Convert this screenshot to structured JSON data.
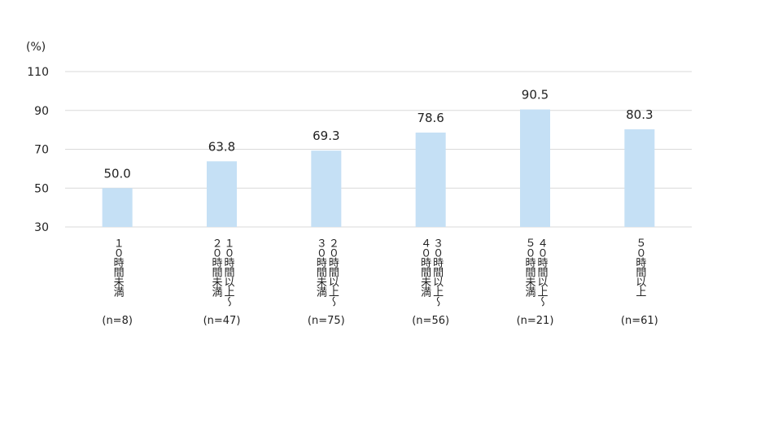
{
  "chart_data": {
    "type": "bar",
    "y_label": "(%)",
    "categories": [
      [
        "１０時間未満"
      ],
      [
        "１０時間以上〜",
        "２０時間未満"
      ],
      [
        "２０時間以上〜",
        "３０時間未満"
      ],
      [
        "３０時間以上〜",
        "４０時間未満"
      ],
      [
        "４０時間以上〜",
        "５０時間未満"
      ],
      [
        "５０時間以上"
      ]
    ],
    "sample_sizes": [
      "(n=8)",
      "(n=47)",
      "(n=75)",
      "(n=56)",
      "(n=21)",
      "(n=61)"
    ],
    "values": [
      50.0,
      63.8,
      69.3,
      78.6,
      90.5,
      80.3
    ],
    "value_labels": [
      "50.0",
      "63.8",
      "69.3",
      "78.6",
      "90.5",
      "80.3"
    ],
    "color": "#c5e0f5",
    "ylim": [
      30,
      110
    ],
    "yticks": [
      30,
      50,
      70,
      90,
      110
    ],
    "grid": true
  }
}
